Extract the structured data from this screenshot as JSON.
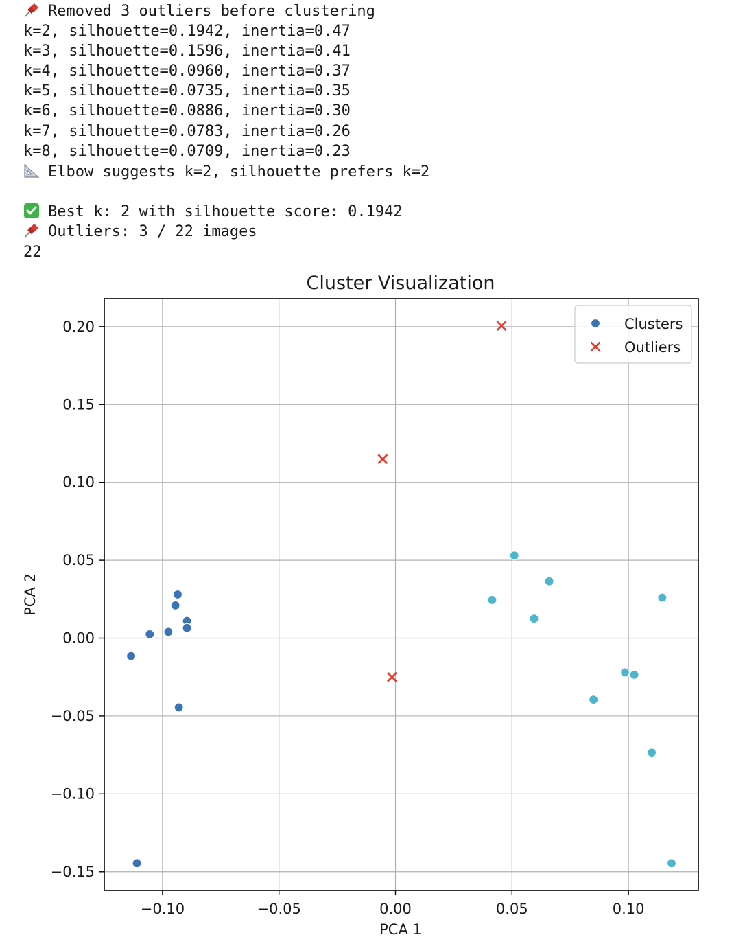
{
  "console": {
    "lines": [
      {
        "icon": "pushpin-icon",
        "text": "Removed 3 outliers before clustering"
      },
      {
        "icon": "",
        "text": "k=2, silhouette=0.1942, inertia=0.47"
      },
      {
        "icon": "",
        "text": "k=3, silhouette=0.1596, inertia=0.41"
      },
      {
        "icon": "",
        "text": "k=4, silhouette=0.0960, inertia=0.37"
      },
      {
        "icon": "",
        "text": "k=5, silhouette=0.0735, inertia=0.35"
      },
      {
        "icon": "",
        "text": "k=6, silhouette=0.0886, inertia=0.30"
      },
      {
        "icon": "",
        "text": "k=7, silhouette=0.0783, inertia=0.26"
      },
      {
        "icon": "",
        "text": "k=8, silhouette=0.0709, inertia=0.23"
      },
      {
        "icon": "triangular-ruler-icon",
        "text": "Elbow suggests k=2, silhouette prefers k=2"
      },
      {
        "icon": "",
        "text": ""
      },
      {
        "icon": "check-mark-icon",
        "text": "Best k: 2 with silhouette score: 0.1942"
      },
      {
        "icon": "pushpin-icon",
        "text": "Outliers: 3 / 22 images"
      },
      {
        "icon": "",
        "text": "22"
      }
    ]
  },
  "chart_data": {
    "type": "scatter",
    "title": "Cluster Visualization",
    "xlabel": "PCA 1",
    "ylabel": "PCA 2",
    "xlim": [
      -0.125,
      0.13
    ],
    "ylim": [
      -0.162,
      0.218
    ],
    "xticks": [
      -0.1,
      -0.05,
      0.0,
      0.05,
      0.1
    ],
    "xtick_labels": [
      "−0.10",
      "−0.05",
      "0.00",
      "0.05",
      "0.10"
    ],
    "yticks": [
      -0.15,
      -0.1,
      -0.05,
      0.0,
      0.05,
      0.1,
      0.15,
      0.2
    ],
    "ytick_labels": [
      "−0.15",
      "−0.10",
      "−0.05",
      "0.00",
      "0.05",
      "0.10",
      "0.15",
      "0.20"
    ],
    "grid": true,
    "legend": {
      "position": "top-right",
      "entries": [
        {
          "label": "Clusters",
          "marker": "circle",
          "color": "#3a74b4"
        },
        {
          "label": "Outliers",
          "marker": "x",
          "color": "#e8372c"
        }
      ]
    },
    "series": [
      {
        "name": "Clusters",
        "marker": "circle",
        "groups": [
          {
            "color": "#3a74b4",
            "points": [
              [
                -0.0935,
                0.028
              ],
              [
                -0.0945,
                0.021
              ],
              [
                -0.0895,
                0.011
              ],
              [
                -0.0895,
                0.0065
              ],
              [
                -0.0975,
                0.004
              ],
              [
                -0.1055,
                0.0025
              ],
              [
                -0.1135,
                -0.0115
              ],
              [
                -0.093,
                -0.0445
              ],
              [
                -0.111,
                -0.1445
              ]
            ]
          },
          {
            "color": "#4bb6ce",
            "points": [
              [
                0.051,
                0.053
              ],
              [
                0.066,
                0.0365
              ],
              [
                0.0415,
                0.0245
              ],
              [
                0.0595,
                0.0125
              ],
              [
                0.1145,
                0.026
              ],
              [
                0.0985,
                -0.022
              ],
              [
                0.1025,
                -0.0235
              ],
              [
                0.085,
                -0.0395
              ],
              [
                0.11,
                -0.0735
              ],
              [
                0.1185,
                -0.1445
              ]
            ]
          }
        ]
      },
      {
        "name": "Outliers",
        "marker": "x",
        "color": "#e8372c",
        "points": [
          [
            0.0455,
            0.2005
          ],
          [
            -0.0055,
            0.115
          ],
          [
            -0.0015,
            -0.025
          ]
        ]
      }
    ]
  }
}
